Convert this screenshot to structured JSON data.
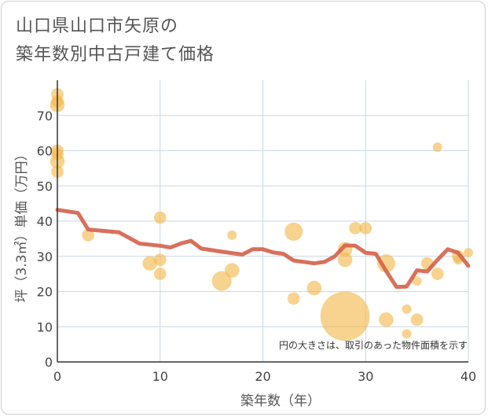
{
  "chart_data": {
    "type": "scatter",
    "title": [
      "山口県山口市矢原の",
      "築年数別中古戸建て価格"
    ],
    "xlabel": "築年数（年）",
    "ylabel": "坪（3.3㎡）単価（万円）",
    "xlim": [
      0,
      40
    ],
    "ylim": [
      0,
      80
    ],
    "xticks": [
      0,
      10,
      20,
      30,
      40
    ],
    "yticks": [
      0,
      10,
      20,
      30,
      40,
      50,
      60,
      70
    ],
    "grid": true,
    "note": "円の大きさは、取引のあった物件面積を示す",
    "colors": {
      "bubble": "#f2b84b",
      "line": "#d4604a",
      "grid": "#c9d7e6",
      "axis": "#333333"
    },
    "bubbles": [
      {
        "x": 0,
        "y": 76,
        "size": 2
      },
      {
        "x": 0,
        "y": 74,
        "size": 2
      },
      {
        "x": 0,
        "y": 73,
        "size": 3
      },
      {
        "x": 0,
        "y": 60,
        "size": 2
      },
      {
        "x": 0,
        "y": 59,
        "size": 2
      },
      {
        "x": 0,
        "y": 57,
        "size": 3
      },
      {
        "x": 0,
        "y": 54,
        "size": 2
      },
      {
        "x": 3,
        "y": 36,
        "size": 2
      },
      {
        "x": 10,
        "y": 41,
        "size": 2
      },
      {
        "x": 9,
        "y": 28,
        "size": 3
      },
      {
        "x": 10,
        "y": 29,
        "size": 2
      },
      {
        "x": 10,
        "y": 25,
        "size": 2
      },
      {
        "x": 16,
        "y": 23,
        "size": 6
      },
      {
        "x": 17,
        "y": 26,
        "size": 3
      },
      {
        "x": 17,
        "y": 36,
        "size": 1
      },
      {
        "x": 23,
        "y": 37,
        "size": 5
      },
      {
        "x": 23,
        "y": 18,
        "size": 2
      },
      {
        "x": 25,
        "y": 21,
        "size": 3
      },
      {
        "x": 28,
        "y": 13,
        "size": 44
      },
      {
        "x": 28,
        "y": 32,
        "size": 3
      },
      {
        "x": 28,
        "y": 29,
        "size": 3
      },
      {
        "x": 29,
        "y": 38,
        "size": 2
      },
      {
        "x": 30,
        "y": 38,
        "size": 2
      },
      {
        "x": 32,
        "y": 28,
        "size": 5
      },
      {
        "x": 32,
        "y": 12,
        "size": 3
      },
      {
        "x": 34,
        "y": 15,
        "size": 1
      },
      {
        "x": 34,
        "y": 8,
        "size": 1
      },
      {
        "x": 35,
        "y": 12,
        "size": 2
      },
      {
        "x": 35,
        "y": 23,
        "size": 1
      },
      {
        "x": 36,
        "y": 28,
        "size": 2
      },
      {
        "x": 37,
        "y": 61,
        "size": 1
      },
      {
        "x": 37,
        "y": 25,
        "size": 2
      },
      {
        "x": 39,
        "y": 30,
        "size": 2
      },
      {
        "x": 39,
        "y": 29,
        "size": 1
      },
      {
        "x": 40,
        "y": 31,
        "size": 1
      }
    ],
    "trend": [
      {
        "x": 0,
        "y": 43.2
      },
      {
        "x": 2,
        "y": 42.3
      },
      {
        "x": 3,
        "y": 37.6
      },
      {
        "x": 6,
        "y": 36.8
      },
      {
        "x": 8,
        "y": 33.6
      },
      {
        "x": 10,
        "y": 33.0
      },
      {
        "x": 11,
        "y": 32.5
      },
      {
        "x": 12,
        "y": 33.6
      },
      {
        "x": 13,
        "y": 34.4
      },
      {
        "x": 14,
        "y": 32.2
      },
      {
        "x": 16,
        "y": 31.3
      },
      {
        "x": 18,
        "y": 30.5
      },
      {
        "x": 19,
        "y": 32.0
      },
      {
        "x": 20,
        "y": 32.0
      },
      {
        "x": 21,
        "y": 31.1
      },
      {
        "x": 22,
        "y": 30.7
      },
      {
        "x": 23,
        "y": 28.8
      },
      {
        "x": 25,
        "y": 28.0
      },
      {
        "x": 26,
        "y": 28.4
      },
      {
        "x": 27,
        "y": 30.0
      },
      {
        "x": 28,
        "y": 33.1
      },
      {
        "x": 29,
        "y": 33.0
      },
      {
        "x": 30,
        "y": 31.0
      },
      {
        "x": 31,
        "y": 30.7
      },
      {
        "x": 32,
        "y": 25.8
      },
      {
        "x": 33,
        "y": 21.3
      },
      {
        "x": 34,
        "y": 21.4
      },
      {
        "x": 35,
        "y": 26.0
      },
      {
        "x": 36,
        "y": 25.7
      },
      {
        "x": 37,
        "y": 29.0
      },
      {
        "x": 38,
        "y": 32.0
      },
      {
        "x": 39,
        "y": 31.0
      },
      {
        "x": 40,
        "y": 27.3
      }
    ]
  }
}
